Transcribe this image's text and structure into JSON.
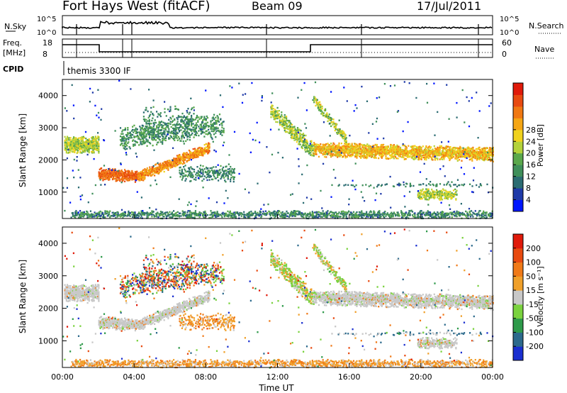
{
  "header": {
    "station": "Fort Hays West (fitACF)",
    "beam": "Beam 09",
    "date": "17/Jul/2011"
  },
  "top_panels": {
    "nsky_label": "N.Sky",
    "nsearch_label": "N.Search",
    "freq_label_1": "Freq.",
    "freq_label_2": "[MHz]",
    "nave_label": "Nave",
    "cpid_label": "CPID",
    "cpid_text": "themis 3300 IF",
    "noise_ticks_left": [
      "10^5",
      "10^0"
    ],
    "noise_ticks_right": [
      "10^5",
      "10^0"
    ],
    "freq_ticks": [
      "18",
      "8"
    ],
    "nave_ticks": [
      "60",
      "0"
    ]
  },
  "chart_data": [
    {
      "type": "heatmap",
      "name": "power",
      "ylabel": "Slant Range [km]",
      "xlabel": "Time UT",
      "yticks": [
        1000,
        2000,
        3000,
        4000
      ],
      "ylim": [
        180,
        4500
      ],
      "xlim": [
        0,
        24
      ],
      "colorbar": {
        "label": "Power [dB]",
        "ticks": [
          4,
          8,
          12,
          16,
          20,
          24,
          28
        ],
        "colors": [
          "#0016ff",
          "#1f3aa8",
          "#2b6c72",
          "#3f8f5a",
          "#5aa84b",
          "#b4d23a",
          "#f0d21e",
          "#f5a614",
          "#f07812",
          "#e84a10",
          "#e01a0a"
        ]
      }
    },
    {
      "type": "heatmap",
      "name": "velocity",
      "ylabel": "Slant Range [km]",
      "xlabel": "Time UT",
      "yticks": [
        1000,
        2000,
        3000,
        4000
      ],
      "ylim": [
        180,
        4500
      ],
      "xlim": [
        0,
        24
      ],
      "xticks": [
        "00:00",
        "04:00",
        "08:00",
        "12:00",
        "16:00",
        "20:00",
        "00:00"
      ],
      "colorbar": {
        "label": "Velocity [m s⁻¹]",
        "ticks": [
          200,
          100,
          50,
          15,
          -15,
          -50,
          -100,
          -200
        ],
        "colors": [
          "#1a2fd0",
          "#2c6a8c",
          "#2e9a4a",
          "#7ad23e",
          "#c8c8c8",
          "#f0a02a",
          "#f07a18",
          "#e84a10",
          "#e01a0a"
        ]
      }
    }
  ]
}
